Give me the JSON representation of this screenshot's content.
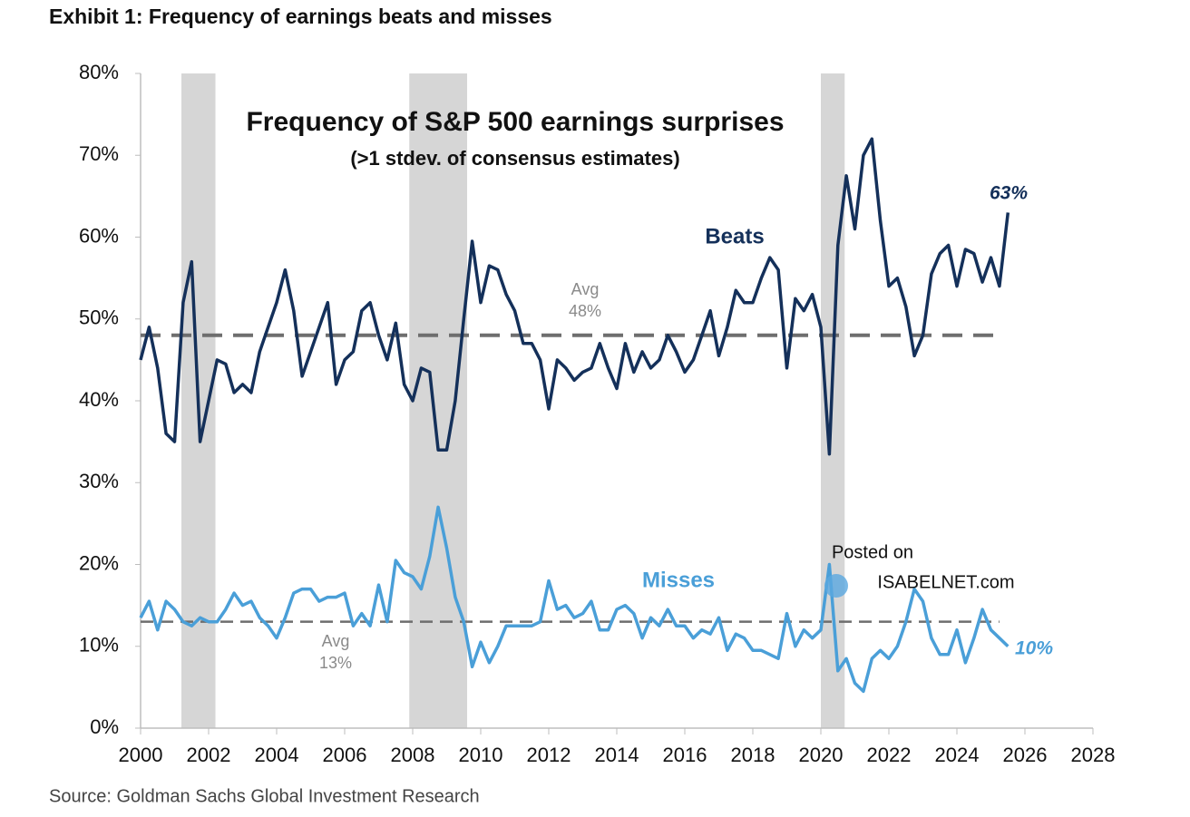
{
  "chart_data": {
    "type": "line",
    "title": "Exhibit 1: Frequency of earnings beats and misses",
    "chart_title": "Frequency of S&P 500 earnings surprises",
    "subtitle": "(>1 stdev. of consensus estimates)",
    "source": "Source: Goldman Sachs Global Investment Research",
    "watermark": [
      "Posted on",
      "ISABELNET.com"
    ],
    "x": [
      2000,
      2000.25,
      2000.5,
      2000.75,
      2001,
      2001.25,
      2001.5,
      2001.75,
      2002,
      2002.25,
      2002.5,
      2002.75,
      2003,
      2003.25,
      2003.5,
      2003.75,
      2004,
      2004.25,
      2004.5,
      2004.75,
      2005,
      2005.25,
      2005.5,
      2005.75,
      2006,
      2006.25,
      2006.5,
      2006.75,
      2007,
      2007.25,
      2007.5,
      2007.75,
      2008,
      2008.25,
      2008.5,
      2008.75,
      2009,
      2009.25,
      2009.5,
      2009.75,
      2010,
      2010.25,
      2010.5,
      2010.75,
      2011,
      2011.25,
      2011.5,
      2011.75,
      2012,
      2012.25,
      2012.5,
      2012.75,
      2013,
      2013.25,
      2013.5,
      2013.75,
      2014,
      2014.25,
      2014.5,
      2014.75,
      2015,
      2015.25,
      2015.5,
      2015.75,
      2016,
      2016.25,
      2016.5,
      2016.75,
      2017,
      2017.25,
      2017.5,
      2017.75,
      2018,
      2018.25,
      2018.5,
      2018.75,
      2019,
      2019.25,
      2019.5,
      2019.75,
      2020,
      2020.25,
      2020.5,
      2020.75,
      2021,
      2021.25,
      2021.5,
      2021.75,
      2022,
      2022.25,
      2022.5,
      2022.75,
      2023,
      2023.25,
      2023.5,
      2023.75,
      2024,
      2024.25,
      2024.5,
      2024.75,
      2025,
      2025.25,
      2025.5
    ],
    "series": [
      {
        "name": "Beats",
        "color": "#14305a",
        "end_label": "63%",
        "values": [
          45,
          49,
          44,
          36,
          35,
          52,
          57,
          35,
          40,
          45,
          44.5,
          41,
          42,
          41,
          46,
          49,
          52,
          56,
          51,
          43,
          46,
          49,
          52,
          42,
          45,
          46,
          51,
          52,
          48,
          45,
          49.5,
          42,
          40,
          44,
          43.5,
          34,
          34,
          40,
          50,
          59.5,
          52,
          56.5,
          56,
          53,
          51,
          47,
          47,
          45,
          39,
          45,
          44,
          42.5,
          43.5,
          44,
          47,
          44,
          41.5,
          47,
          43.5,
          46,
          44,
          45,
          48,
          46,
          43.5,
          45,
          48,
          51,
          45.5,
          49,
          53.5,
          52,
          52,
          55,
          57.5,
          56,
          44,
          52.5,
          51,
          53,
          49,
          33.5,
          59,
          67.5,
          61,
          70,
          72,
          62,
          54,
          55,
          51.5,
          45.5,
          48,
          55.5,
          58,
          59,
          54,
          58.5,
          58,
          54.5,
          57.5,
          54,
          63
        ]
      },
      {
        "name": "Misses",
        "color": "#4a9fd8",
        "end_label": "10%",
        "values": [
          13.5,
          15.5,
          12,
          15.5,
          14.5,
          13,
          12.5,
          13.5,
          13,
          13,
          14.5,
          16.5,
          15,
          15.5,
          13.5,
          12.5,
          11,
          13.5,
          16.5,
          17,
          17,
          15.5,
          16,
          16,
          16.5,
          12.5,
          14,
          12.5,
          17.5,
          13,
          20.5,
          19,
          18.5,
          17,
          21,
          27,
          22,
          16,
          13,
          7.5,
          10.5,
          8,
          10,
          12.5,
          12.5,
          12.5,
          12.5,
          13,
          18,
          14.5,
          15,
          13.5,
          14,
          15.5,
          12,
          12,
          14.5,
          15,
          14,
          11,
          13.5,
          12.5,
          14.5,
          12.5,
          12.5,
          11,
          12,
          11.5,
          13.5,
          9.5,
          11.5,
          11,
          9.5,
          9.5,
          9,
          8.5,
          14,
          10,
          12,
          11,
          12,
          20,
          7,
          8.5,
          5.5,
          4.5,
          8.5,
          9.5,
          8.5,
          10,
          13,
          17,
          15.5,
          11,
          9,
          9,
          12,
          8,
          11,
          14.5,
          12,
          11,
          10
        ]
      }
    ],
    "averages": [
      {
        "value": 48,
        "text": [
          "Avg",
          "48%"
        ],
        "x_range": [
          2000,
          2025.25
        ],
        "color": "#6e6e6e"
      },
      {
        "value": 13,
        "text": [
          "Avg",
          "13%"
        ],
        "x_range": [
          2000,
          2025.25
        ],
        "color": "#6e6e6e"
      }
    ],
    "recessions": [
      [
        2001.2,
        2002.2
      ],
      [
        2007.9,
        2009.6
      ],
      [
        2020.0,
        2020.7
      ]
    ],
    "xlim": [
      2000,
      2028
    ],
    "xticks": [
      2000,
      2002,
      2004,
      2006,
      2008,
      2010,
      2012,
      2014,
      2016,
      2018,
      2020,
      2022,
      2024,
      2026,
      2028
    ],
    "ylim": [
      0,
      80
    ],
    "yticks": [
      {
        "value": 0,
        "label": "0%"
      },
      {
        "value": 10,
        "label": "10%"
      },
      {
        "value": 20,
        "label": "20%"
      },
      {
        "value": 30,
        "label": "30%"
      },
      {
        "value": 40,
        "label": "40%"
      },
      {
        "value": 50,
        "label": "50%"
      },
      {
        "value": 60,
        "label": "60%"
      },
      {
        "value": 70,
        "label": "70%"
      },
      {
        "value": 80,
        "label": "80%"
      }
    ],
    "grid": false
  }
}
